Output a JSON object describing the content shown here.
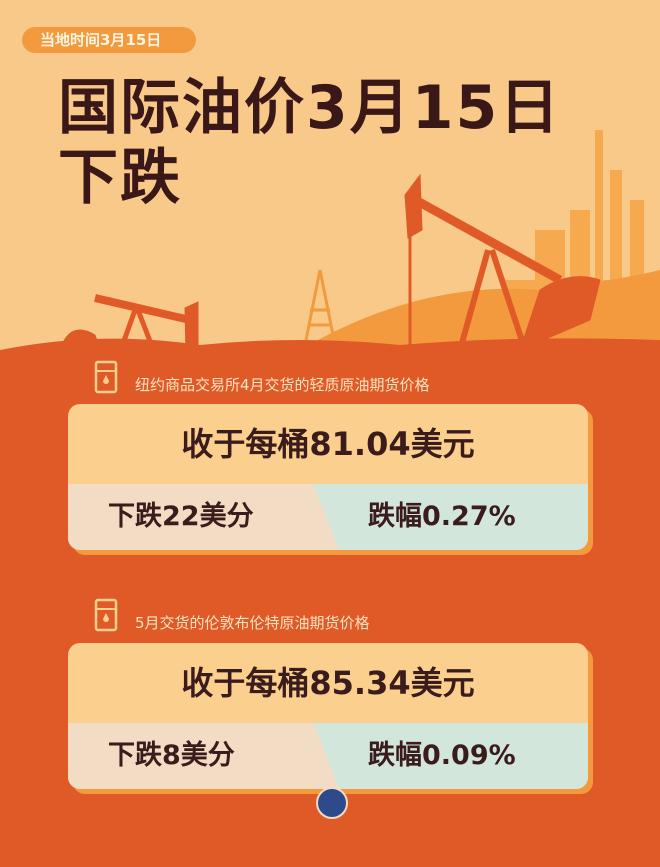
{
  "header": {
    "date_badge": "当地时间3月15日",
    "title_line1": "国际油价3月15日",
    "title_line2": "下跌"
  },
  "sections": [
    {
      "label": "纽约商品交易所4月交货的轻质原油期货价格",
      "price": "收于每桶81.04美元",
      "change": "下跌22美分",
      "percent": "跌幅0.27%",
      "icon": "oil-barrel-icon"
    },
    {
      "label": "5月交货的伦敦布伦特原油期货价格",
      "price": "收于每桶85.34美元",
      "change": "下跌8美分",
      "percent": "跌幅0.09%",
      "icon": "oil-barrel-icon"
    }
  ],
  "colors": {
    "background": "#f9c98a",
    "ground": "#e05a28",
    "card": "#fbd08e",
    "change_cell": "#f3dcc4",
    "percent_cell": "#d3e6dc",
    "text": "#3a1c1c"
  }
}
